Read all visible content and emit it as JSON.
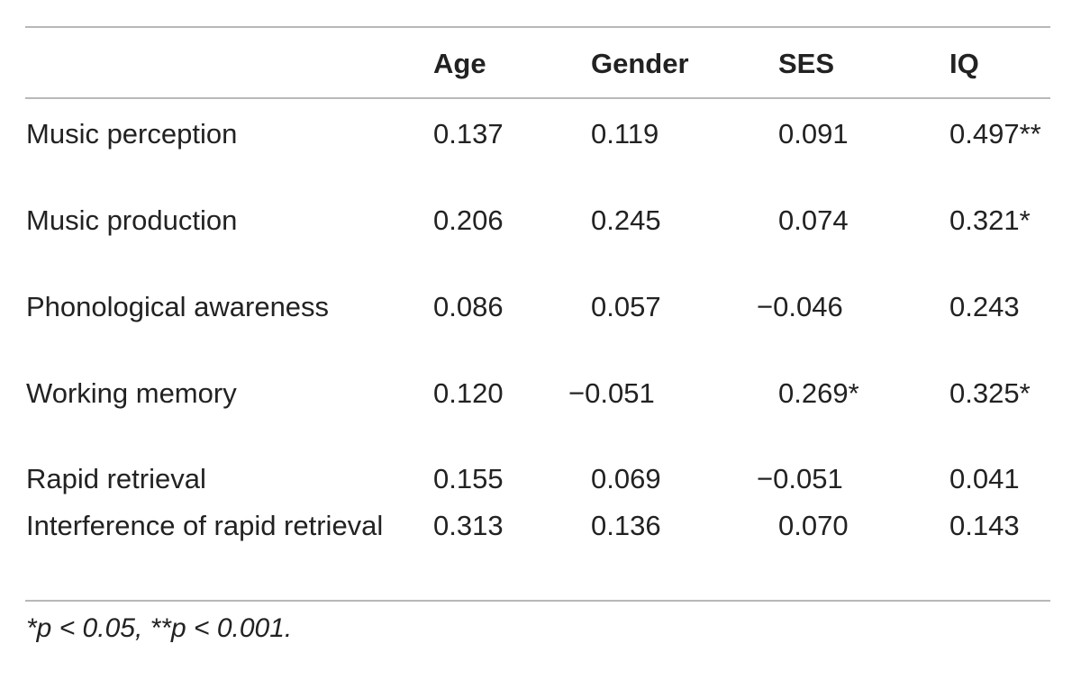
{
  "table": {
    "headers": [
      "Age",
      "Gender",
      "SES",
      "IQ"
    ],
    "rows": [
      {
        "label": "Music perception",
        "age": "0.137",
        "gender": "0.119",
        "ses": "0.091",
        "iq": "0.497**"
      },
      {
        "label": "Music production",
        "age": "0.206",
        "gender": "0.245",
        "ses": "0.074",
        "iq": "0.321*"
      },
      {
        "label": "Phonological awareness",
        "age": "0.086",
        "gender": "0.057",
        "ses": "−0.046",
        "iq": "0.243"
      },
      {
        "label": "Working memory",
        "age": "0.120",
        "gender": "−0.051",
        "ses": "0.269*",
        "iq": "0.325*"
      },
      {
        "label": "Rapid retrieval",
        "age": "0.155",
        "gender": "0.069",
        "ses": "−0.051",
        "iq": "0.041"
      },
      {
        "label": "Interference of rapid retrieval",
        "age": "0.313",
        "gender": "0.136",
        "ses": "0.070",
        "iq": "0.143"
      }
    ],
    "footnote": "*p < 0.05, **p < 0.001."
  }
}
